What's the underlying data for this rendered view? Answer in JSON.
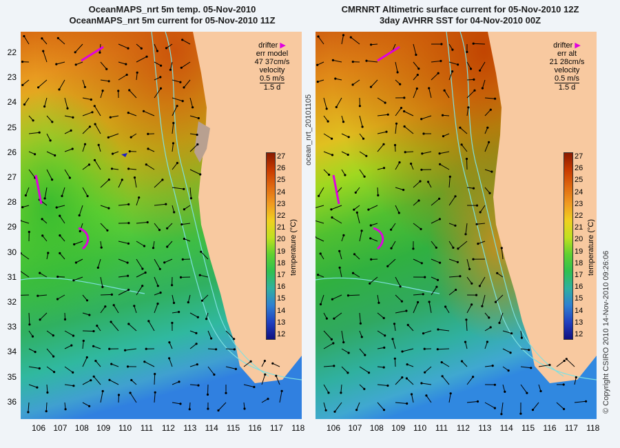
{
  "left_panel": {
    "title_line1": "OceanMAPS_nrt 5m temp. 05-Nov-2010",
    "title_line2": "OceanMAPS_nrt 5m current for 05-Nov-2010 11Z",
    "legend": {
      "drifter": "drifter",
      "err_label": "err model",
      "err_value": "47 37cm/s",
      "velocity": "velocity",
      "scale_value": "0.5 m/s",
      "scale_time": "1.5 d"
    }
  },
  "right_panel": {
    "title_line1": "CMRNRT Altimetric surface current for 05-Nov-2010 12Z",
    "title_line2": "3day AVHRR SST for 04-Nov-2010 00Z",
    "legend": {
      "drifter": "drifter",
      "err_label": "err alt",
      "err_value": "21 28cm/s",
      "velocity": "velocity",
      "scale_value": "0.5 m/s",
      "scale_time": "1.5 d"
    }
  },
  "y_axis_labels": [
    "22",
    "23",
    "24",
    "25",
    "26",
    "27",
    "28",
    "29",
    "30",
    "31",
    "32",
    "33",
    "34",
    "35",
    "36"
  ],
  "x_axis_labels": [
    "106",
    "107",
    "108",
    "109",
    "110",
    "111",
    "112",
    "113",
    "114",
    "115",
    "116",
    "117",
    "118"
  ],
  "colorbar": {
    "ticks": [
      "27",
      "26",
      "25",
      "24",
      "23",
      "22",
      "21",
      "20",
      "19",
      "18",
      "17",
      "16",
      "15",
      "14",
      "13",
      "12"
    ],
    "unit": "temperature (°C)"
  },
  "side_text": "ocean_nrt_20101105",
  "copyright": "© Copyright CSIRO 2010   14-Nov-2010 09:26:06",
  "colors": {
    "land": "#f8c9a0",
    "drifter": "#e000e0",
    "contour": "#7fe0e0",
    "arrow": "#000000"
  }
}
